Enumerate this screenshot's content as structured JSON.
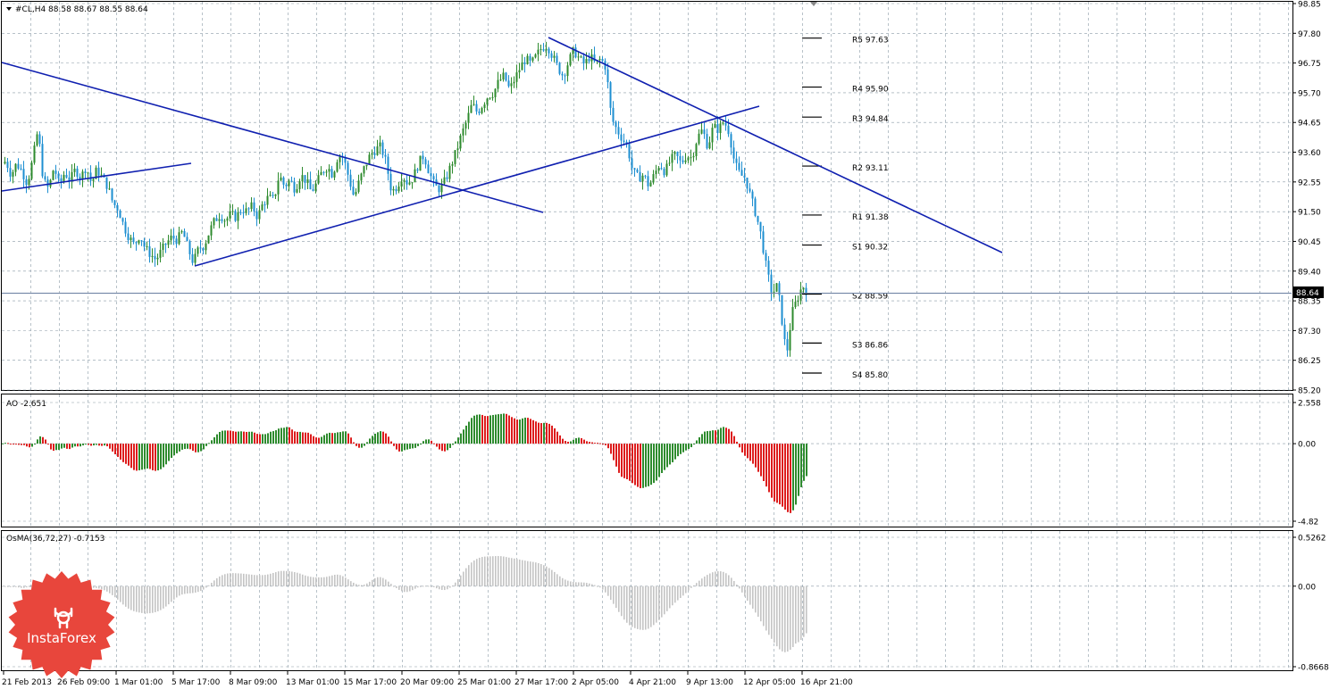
{
  "header": {
    "symbol_info": "#CL,H4  88.58 88.67 88.55 88.64",
    "current_price": "88.64"
  },
  "colors": {
    "bull": "#2e8b2e",
    "bear": "#dd1c1c",
    "down_candle": "#1e8fd1",
    "trendline": "#1020b0",
    "grid": "#8a9aa6",
    "osma": "#c4c4c4",
    "logo": "#e8463c"
  },
  "logo": {
    "text": "InstaForex",
    "icon": "instaforex-bull-icon"
  },
  "chart_data": [
    {
      "type": "candlestick",
      "title": "#CL,H4",
      "ohlc_last": {
        "open": 88.58,
        "high": 88.67,
        "low": 88.55,
        "close": 88.64
      },
      "ylim": [
        85.2,
        98.85
      ],
      "yticks": [
        "98.85",
        "97.80",
        "96.75",
        "95.70",
        "94.65",
        "93.60",
        "92.55",
        "91.50",
        "90.45",
        "89.40",
        "88.35",
        "87.30",
        "86.25",
        "85.20"
      ],
      "x_tick_labels": [
        "21 Feb 2013",
        "26 Feb 09:00",
        "1 Mar 01:00",
        "5 Mar 17:00",
        "8 Mar 09:00",
        "13 Mar 01:00",
        "15 Mar 17:00",
        "20 Mar 09:00",
        "25 Mar 01:00",
        "27 Mar 17:00",
        "2 Apr 05:00",
        "4 Apr 21:00",
        "9 Apr 13:00",
        "12 Apr 05:00",
        "16 Apr 21:00"
      ],
      "close_path": [
        [
          0,
          93.1
        ],
        [
          6,
          93.3
        ],
        [
          12,
          92.8
        ],
        [
          18,
          93.2
        ],
        [
          24,
          92.95
        ],
        [
          30,
          92.5
        ],
        [
          36,
          93.3
        ],
        [
          42,
          94.4
        ],
        [
          48,
          92.6
        ],
        [
          54,
          92.3
        ],
        [
          60,
          93.1
        ],
        [
          66,
          92.4
        ],
        [
          72,
          92.9
        ],
        [
          78,
          92.6
        ],
        [
          84,
          93.0
        ],
        [
          90,
          92.7
        ],
        [
          96,
          93.1
        ],
        [
          102,
          92.5
        ],
        [
          108,
          93.0
        ],
        [
          114,
          92.7
        ],
        [
          120,
          92.4
        ],
        [
          126,
          91.8
        ],
        [
          132,
          91.6
        ],
        [
          138,
          91.0
        ],
        [
          144,
          90.6
        ],
        [
          150,
          90.3
        ],
        [
          156,
          90.7
        ],
        [
          162,
          90.2
        ],
        [
          168,
          90.0
        ],
        [
          174,
          89.8
        ],
        [
          180,
          90.1
        ],
        [
          186,
          90.4
        ],
        [
          192,
          90.6
        ],
        [
          198,
          90.5
        ],
        [
          204,
          90.8
        ],
        [
          210,
          90.2
        ],
        [
          216,
          89.7
        ],
        [
          222,
          90.2
        ],
        [
          228,
          90.3
        ],
        [
          234,
          90.8
        ],
        [
          240,
          91.2
        ],
        [
          246,
          91.4
        ],
        [
          252,
          91.2
        ],
        [
          258,
          91.4
        ],
        [
          264,
          91.3
        ],
        [
          270,
          91.6
        ],
        [
          276,
          91.5
        ],
        [
          282,
          91.7
        ],
        [
          288,
          91.3
        ],
        [
          294,
          91.8
        ],
        [
          300,
          92.0
        ],
        [
          306,
          91.9
        ],
        [
          312,
          92.8
        ],
        [
          318,
          92.4
        ],
        [
          324,
          92.6
        ],
        [
          330,
          92.3
        ],
        [
          336,
          92.8
        ],
        [
          342,
          92.6
        ],
        [
          348,
          92.2
        ],
        [
          354,
          92.5
        ],
        [
          360,
          92.9
        ],
        [
          366,
          93.1
        ],
        [
          372,
          92.8
        ],
        [
          378,
          93.5
        ],
        [
          384,
          93.4
        ],
        [
          390,
          92.7
        ],
        [
          396,
          92.0
        ],
        [
          402,
          92.6
        ],
        [
          408,
          93.1
        ],
        [
          414,
          93.5
        ],
        [
          420,
          93.7
        ],
        [
          426,
          93.8
        ],
        [
          432,
          93.2
        ],
        [
          438,
          92.2
        ],
        [
          444,
          92.4
        ],
        [
          450,
          92.8
        ],
        [
          456,
          92.5
        ],
        [
          462,
          92.7
        ],
        [
          468,
          93.2
        ],
        [
          474,
          93.5
        ],
        [
          480,
          92.9
        ],
        [
          486,
          92.4
        ],
        [
          492,
          92.3
        ],
        [
          498,
          92.6
        ],
        [
          504,
          93.1
        ],
        [
          510,
          93.6
        ],
        [
          516,
          94.2
        ],
        [
          522,
          94.7
        ],
        [
          528,
          95.3
        ],
        [
          534,
          95.0
        ],
        [
          540,
          95.3
        ],
        [
          546,
          95.6
        ],
        [
          552,
          95.7
        ],
        [
          558,
          96.1
        ],
        [
          564,
          96.3
        ],
        [
          570,
          95.8
        ],
        [
          576,
          96.2
        ],
        [
          582,
          96.6
        ],
        [
          588,
          96.9
        ],
        [
          594,
          96.7
        ],
        [
          600,
          97.0
        ],
        [
          606,
          97.3
        ],
        [
          612,
          97.4
        ],
        [
          618,
          97.0
        ],
        [
          624,
          96.6
        ],
        [
          630,
          96.3
        ],
        [
          636,
          96.8
        ],
        [
          642,
          97.2
        ],
        [
          648,
          96.9
        ],
        [
          654,
          96.7
        ],
        [
          660,
          97.0
        ],
        [
          666,
          96.7
        ],
        [
          672,
          96.9
        ],
        [
          678,
          96.6
        ],
        [
          684,
          94.8
        ],
        [
          690,
          94.4
        ],
        [
          696,
          94.1
        ],
        [
          702,
          93.8
        ],
        [
          708,
          92.9
        ],
        [
          714,
          92.7
        ],
        [
          720,
          92.8
        ],
        [
          726,
          92.4
        ],
        [
          732,
          92.8
        ],
        [
          738,
          93.2
        ],
        [
          744,
          92.9
        ],
        [
          750,
          93.3
        ],
        [
          756,
          93.5
        ],
        [
          762,
          93.2
        ],
        [
          768,
          93.5
        ],
        [
          774,
          93.4
        ],
        [
          780,
          94.1
        ],
        [
          786,
          94.4
        ],
        [
          792,
          93.8
        ],
        [
          798,
          94.5
        ],
        [
          804,
          94.4
        ],
        [
          810,
          94.7
        ],
        [
          816,
          94.3
        ],
        [
          822,
          93.2
        ],
        [
          828,
          92.8
        ],
        [
          834,
          92.7
        ],
        [
          840,
          92.0
        ],
        [
          846,
          91.4
        ],
        [
          852,
          90.6
        ],
        [
          858,
          89.4
        ],
        [
          864,
          88.6
        ],
        [
          870,
          88.9
        ],
        [
          876,
          87.4
        ],
        [
          880,
          86.4
        ],
        [
          886,
          87.9
        ],
        [
          892,
          88.4
        ],
        [
          898,
          88.9
        ],
        [
          904,
          88.64
        ]
      ],
      "pivot_levels": [
        {
          "label": "R5 97.63",
          "value": 97.63
        },
        {
          "label": "R4 95.90",
          "value": 95.9
        },
        {
          "label": "R3 94.84",
          "value": 94.84
        },
        {
          "label": "R2 93.11",
          "value": 93.11
        },
        {
          "label": "R1 91.38",
          "value": 91.38
        },
        {
          "label": "S1 90.32",
          "value": 90.32
        },
        {
          "label": "S2 88.59",
          "value": 88.59
        },
        {
          "label": "S3 86.86",
          "value": 86.86
        },
        {
          "label": "S4 85.80",
          "value": 85.8
        }
      ],
      "trendlines": [
        [
          [
            2,
            70
          ],
          [
            608,
            238
          ]
        ],
        [
          [
            2,
            214
          ],
          [
            214,
            183
          ]
        ],
        [
          [
            218,
            298
          ],
          [
            850,
            119
          ]
        ],
        [
          [
            614,
            42
          ],
          [
            1122,
            283
          ]
        ]
      ]
    },
    {
      "type": "histogram",
      "title": "AO -2.651",
      "ylim": [
        -4.82,
        2.558
      ],
      "yticks": [
        "2.558",
        "0.00",
        "-4.82"
      ]
    },
    {
      "type": "histogram",
      "title": "OsMA(36,72,27) -0.7153",
      "ylim": [
        -0.8668,
        0.5262
      ],
      "yticks": [
        "0.5262",
        "0.00",
        "-0.8668"
      ]
    }
  ]
}
